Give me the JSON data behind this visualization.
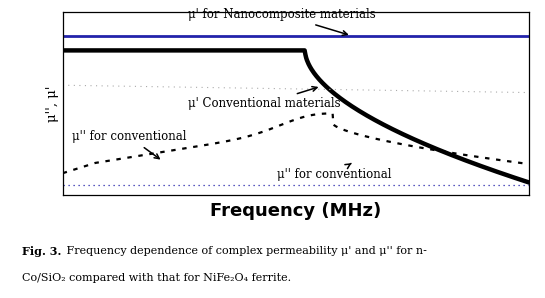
{
  "title": "Frequency (MHz)",
  "ylabel": "μ'', μ'",
  "fig_caption_bold": "Fig. 3.",
  "fig_caption_line1_normal": " Frequency dependence of complex permeability μ' and μ'' for n-",
  "fig_caption_line2": "Co/SiO₂ compared with that for NiFe₂O₄ ferrite.",
  "bg_color": "#ffffff",
  "line_blue_color": "#2222aa",
  "line_black_color": "#000000",
  "ann0_text": "μ' for Nanocomposite materials",
  "ann1_text": "μ' Conventional materials",
  "ann2_text": "μ'' for conventional",
  "ann3_text": "μ'' for conventional"
}
